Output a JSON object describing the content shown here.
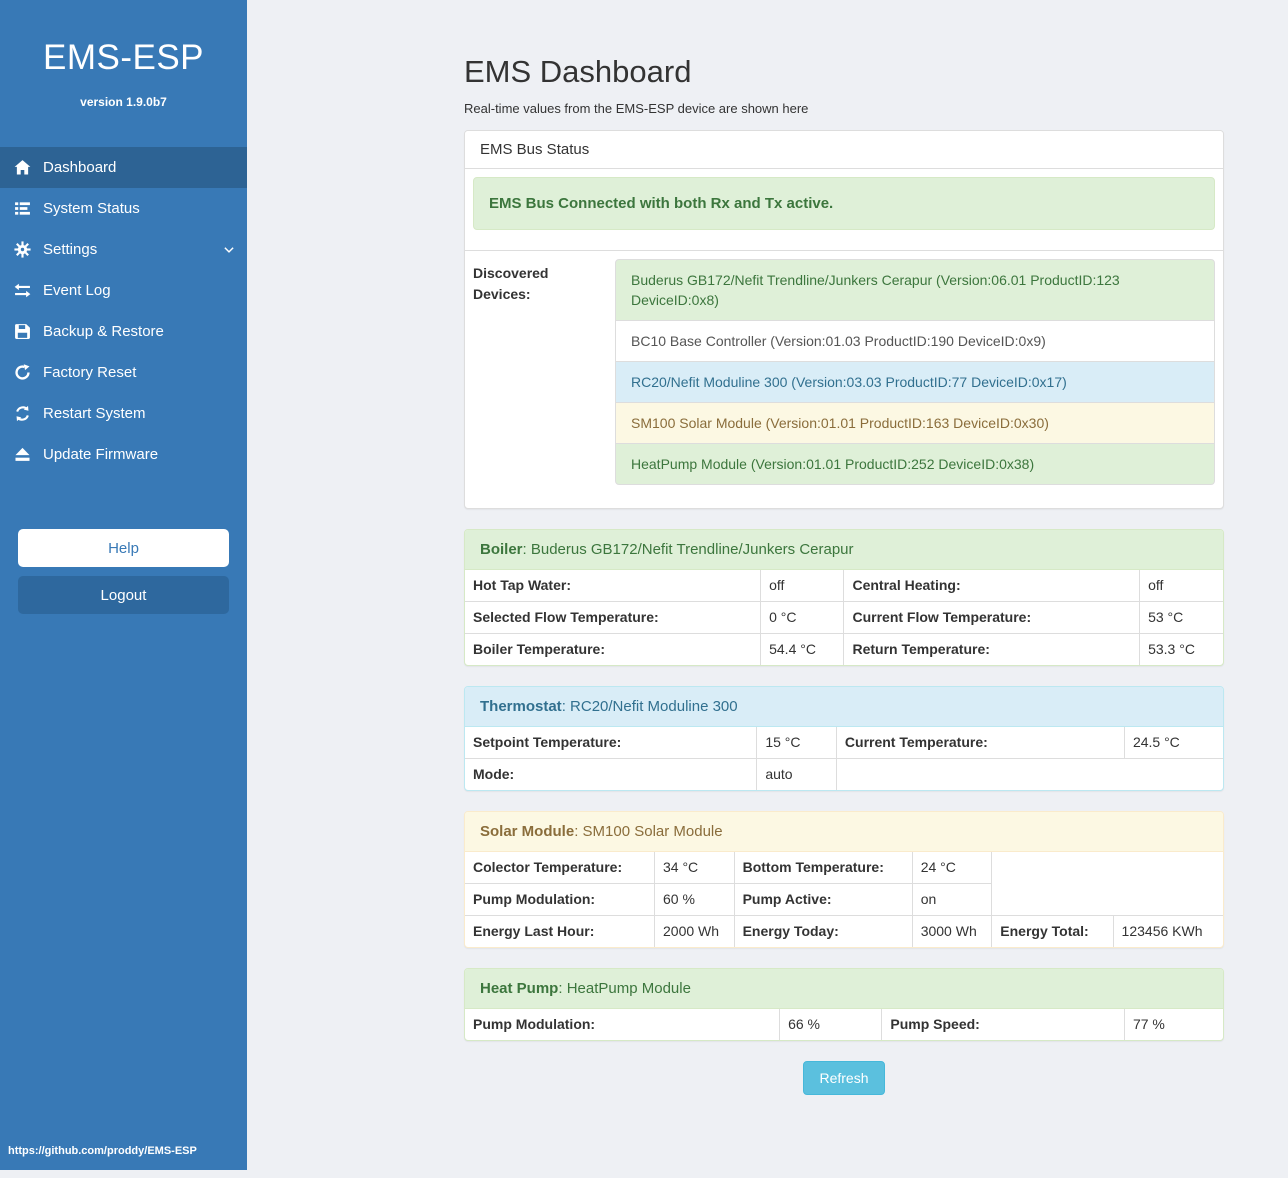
{
  "sidebar": {
    "title": "EMS-ESP",
    "version": "version 1.9.0b7",
    "menu": [
      {
        "label": "Dashboard",
        "icon": "home-icon",
        "active": true,
        "chevron": false
      },
      {
        "label": "System Status",
        "icon": "system-status-icon",
        "active": false,
        "chevron": false
      },
      {
        "label": "Settings",
        "icon": "gear-icon",
        "active": false,
        "chevron": true
      },
      {
        "label": "Event Log",
        "icon": "exchange-icon",
        "active": false,
        "chevron": false
      },
      {
        "label": "Backup & Restore",
        "icon": "save-icon",
        "active": false,
        "chevron": false
      },
      {
        "label": "Factory Reset",
        "icon": "factory-reset-icon",
        "active": false,
        "chevron": false
      },
      {
        "label": "Restart System",
        "icon": "restart-icon",
        "active": false,
        "chevron": false
      },
      {
        "label": "Update Firmware",
        "icon": "upload-icon",
        "active": false,
        "chevron": false
      }
    ],
    "help_label": "Help",
    "logout_label": "Logout",
    "footer_url": "https://github.com/proddy/EMS-ESP"
  },
  "header": {
    "title": "EMS Dashboard",
    "subtitle": "Real-time values from the EMS-ESP device are shown here"
  },
  "bus_panel": {
    "heading": "EMS Bus Status",
    "alert": "EMS Bus Connected with both Rx and Tx active.",
    "devices_label": "Discovered Devices:",
    "devices": [
      {
        "text": "Buderus GB172/Nefit Trendline/Junkers Cerapur (Version:06.01 ProductID:123 DeviceID:0x8)",
        "variant": "success"
      },
      {
        "text": "BC10 Base Controller (Version:01.03 ProductID:190 DeviceID:0x9)",
        "variant": "default"
      },
      {
        "text": "RC20/Nefit Moduline 300 (Version:03.03 ProductID:77 DeviceID:0x17)",
        "variant": "info"
      },
      {
        "text": "SM100 Solar Module (Version:01.01 ProductID:163 DeviceID:0x30)",
        "variant": "warning"
      },
      {
        "text": "HeatPump Module (Version:01.01 ProductID:252 DeviceID:0x38)",
        "variant": "success"
      }
    ]
  },
  "device_panels": [
    {
      "name": "boiler",
      "variant": "success",
      "title_bold": "Boiler",
      "title_rest": ": Buderus GB172/Nefit Trendline/Junkers Cerapur",
      "col_widths": [
        "39%",
        "11%",
        "39%",
        "11%"
      ],
      "rows": [
        [
          [
            "Hot Tap Water:",
            "off"
          ],
          [
            "Central Heating:",
            "off"
          ]
        ],
        [
          [
            "Selected Flow Temperature:",
            "0 °C"
          ],
          [
            "Current Flow Temperature:",
            "53 °C"
          ]
        ],
        [
          [
            "Boiler Temperature:",
            "54.4 °C"
          ],
          [
            "Return Temperature:",
            "53.3 °C"
          ]
        ]
      ]
    },
    {
      "name": "thermostat",
      "variant": "info",
      "title_bold": "Thermostat",
      "title_rest": ": RC20/Nefit Moduline 300",
      "col_widths": [
        "38.5%",
        "10.5%",
        "38%",
        "13%"
      ],
      "rows": [
        [
          [
            "Setpoint Temperature:",
            "15 °C"
          ],
          [
            "Current Temperature:",
            "24.5 °C"
          ]
        ],
        [
          [
            "Mode:",
            "auto"
          ]
        ]
      ]
    },
    {
      "name": "solar-module",
      "variant": "warning",
      "title_bold": "Solar Module",
      "title_rest": ": SM100 Solar Module",
      "col_widths": [
        "25%",
        "10.5%",
        "23.5%",
        "10.5%",
        "16%",
        "14.5%"
      ],
      "rows": [
        [
          [
            "Colector Temperature:",
            "34 °C"
          ],
          [
            "Bottom Temperature:",
            "24 °C"
          ]
        ],
        [
          [
            "Pump Modulation:",
            "60 %"
          ],
          [
            "Pump Active:",
            "on"
          ]
        ],
        [
          [
            "Energy Last Hour:",
            "2000 Wh"
          ],
          [
            "Energy Today:",
            "3000 Wh"
          ],
          [
            "Energy Total:",
            "123456 KWh"
          ]
        ]
      ]
    },
    {
      "name": "heat-pump",
      "variant": "success",
      "title_bold": "Heat Pump",
      "title_rest": ": HeatPump Module",
      "col_widths": [
        "41.5%",
        "13.5%",
        "32%",
        "13%"
      ],
      "rows": [
        [
          [
            "Pump Modulation:",
            "66 %"
          ],
          [
            "Pump Speed:",
            "77 %"
          ]
        ]
      ]
    }
  ],
  "refresh_label": "Refresh",
  "colors": {
    "sidebar": "#3879b6",
    "sidebar_active": "#2d6394",
    "success_bg": "#dff0d8",
    "success_text": "#3c763d",
    "info_bg": "#d9edf7",
    "info_text": "#31708f",
    "warning_bg": "#fcf8e3",
    "warning_text": "#8a6d3b",
    "refresh_button": "#5bc0de"
  }
}
